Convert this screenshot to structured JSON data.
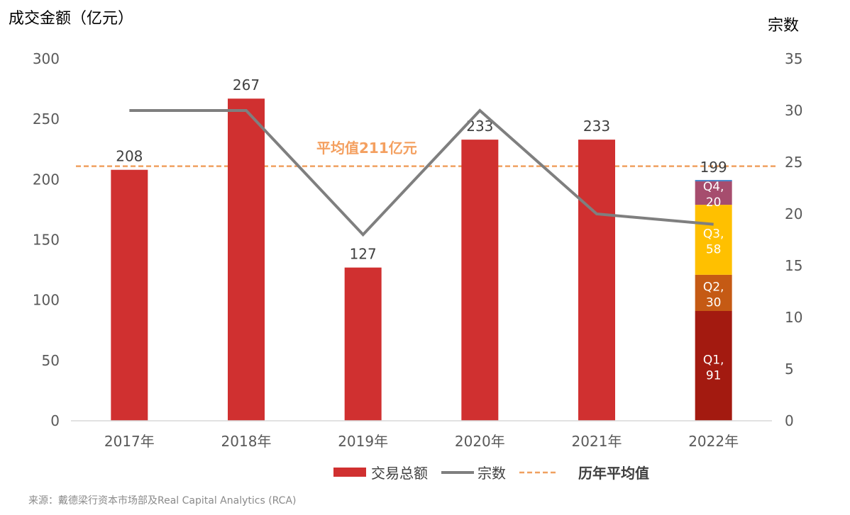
{
  "y_left_title": "成交金额（亿元）",
  "y_right_title": "宗数",
  "source": "来源：戴德梁行资本市场部及Real Capital Analytics (RCA)",
  "avg_annotation": "平均值211亿元",
  "colors": {
    "bar": "#d03030",
    "q1": "#a31a10",
    "q2": "#c55a14",
    "q3": "#ffc000",
    "q4": "#a64d6e",
    "q4_top": "#4a86c8",
    "line": "#7f7f7f",
    "avg": "#f0a060",
    "avg_text": "#f4a060",
    "axis": "#d9d9d9",
    "tick_text": "#595959"
  },
  "chart_data": {
    "type": "bar",
    "categories": [
      "2017年",
      "2018年",
      "2019年",
      "2020年",
      "2021年",
      "2022年"
    ],
    "series": [
      {
        "name": "交易总额",
        "axis": "left",
        "values": [
          208,
          267,
          127,
          233,
          233,
          199
        ],
        "labels": [
          "208",
          "267",
          "127",
          "233",
          "233",
          "199"
        ]
      },
      {
        "name": "宗数",
        "axis": "right",
        "type": "line",
        "values": [
          30,
          30,
          18,
          30,
          20,
          19
        ]
      },
      {
        "name": "历年平均值",
        "axis": "left",
        "type": "line",
        "style": "dashed",
        "values": [
          211,
          211,
          211,
          211,
          211,
          211
        ]
      }
    ],
    "stack_2022": [
      {
        "label": "Q1,",
        "value_label": "91",
        "value": 91
      },
      {
        "label": "Q2,",
        "value_label": "30",
        "value": 30
      },
      {
        "label": "Q3,",
        "value_label": "58",
        "value": 58
      },
      {
        "label": "Q4,",
        "value_label": "20",
        "value": 20
      }
    ],
    "ylim_left": [
      0,
      300
    ],
    "yticks_left": [
      "0",
      "50",
      "100",
      "150",
      "200",
      "250",
      "300"
    ],
    "ylim_right": [
      0,
      35
    ],
    "yticks_right": [
      "0",
      "5",
      "10",
      "15",
      "20",
      "25",
      "30",
      "35"
    ],
    "legend_position": "bottom",
    "grid": false
  }
}
